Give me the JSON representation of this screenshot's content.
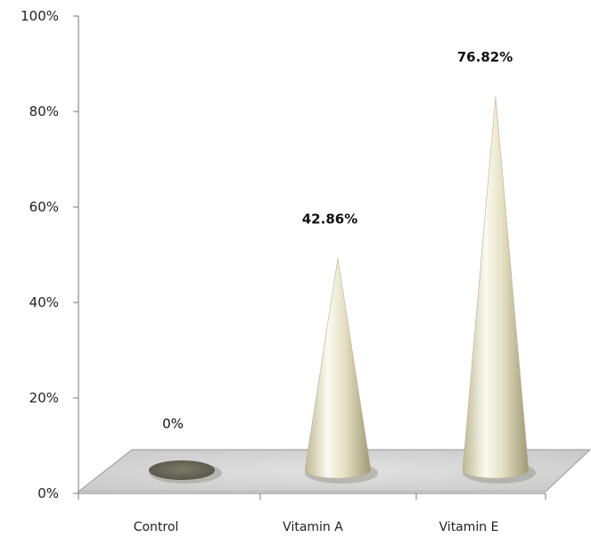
{
  "chart_data": {
    "type": "bar",
    "shape": "cone-3d",
    "categories": [
      "Control",
      "Vitamin A",
      "Vitamin E"
    ],
    "values": [
      0,
      42.86,
      76.82
    ],
    "data_labels": [
      "0%",
      "42.86%",
      "76.82%"
    ],
    "data_label_bold": [
      false,
      true,
      true
    ],
    "y_ticks": [
      "0%",
      "20%",
      "40%",
      "60%",
      "80%",
      "100%"
    ],
    "ylim": [
      0,
      100
    ],
    "grid": false,
    "legend": "none",
    "colors": {
      "cone": "#ece8cf",
      "cone_shadow": "#a8a27e",
      "floor": "#d4d4d4",
      "control_disk": "#6f6c5d"
    }
  }
}
